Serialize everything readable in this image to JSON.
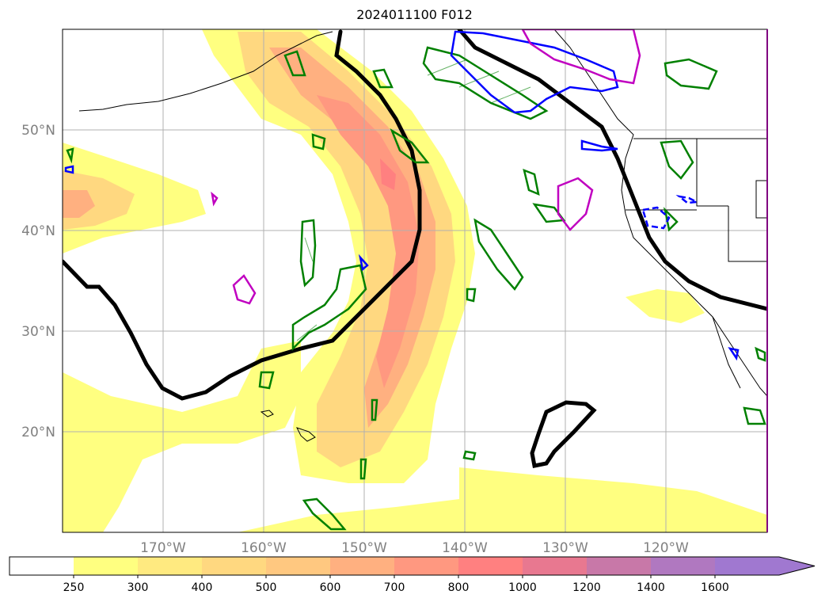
{
  "title": "2024011100 F012",
  "lat_labels": [
    "50°N",
    "40°N",
    "30°N",
    "20°N"
  ],
  "lon_labels": [
    "170°W",
    "160°W",
    "150°W",
    "140°W",
    "130°W",
    "120°W"
  ],
  "colorbar": {
    "ticks": [
      "250",
      "300",
      "400",
      "500",
      "600",
      "700",
      "800",
      "1000",
      "1200",
      "1400",
      "1600"
    ],
    "colors": [
      "#ffffff",
      "#ffff80",
      "#ffea80",
      "#ffd880",
      "#ffc880",
      "#ffb080",
      "#ff9880",
      "#ff8080",
      "#e87890",
      "#c878a8",
      "#b078c0",
      "#a078d0"
    ]
  },
  "colors": {
    "zero_contour": "#000000",
    "green_contour": "#008000",
    "blue_contour": "#0000ff",
    "magenta_contour": "#c000c0",
    "grid": "#b0b0b0"
  },
  "map_view": {
    "region": "North Pacific and western North America",
    "projection": "plate carree",
    "lon_range": [
      -180,
      -110
    ],
    "lat_range": [
      10,
      60
    ]
  }
}
